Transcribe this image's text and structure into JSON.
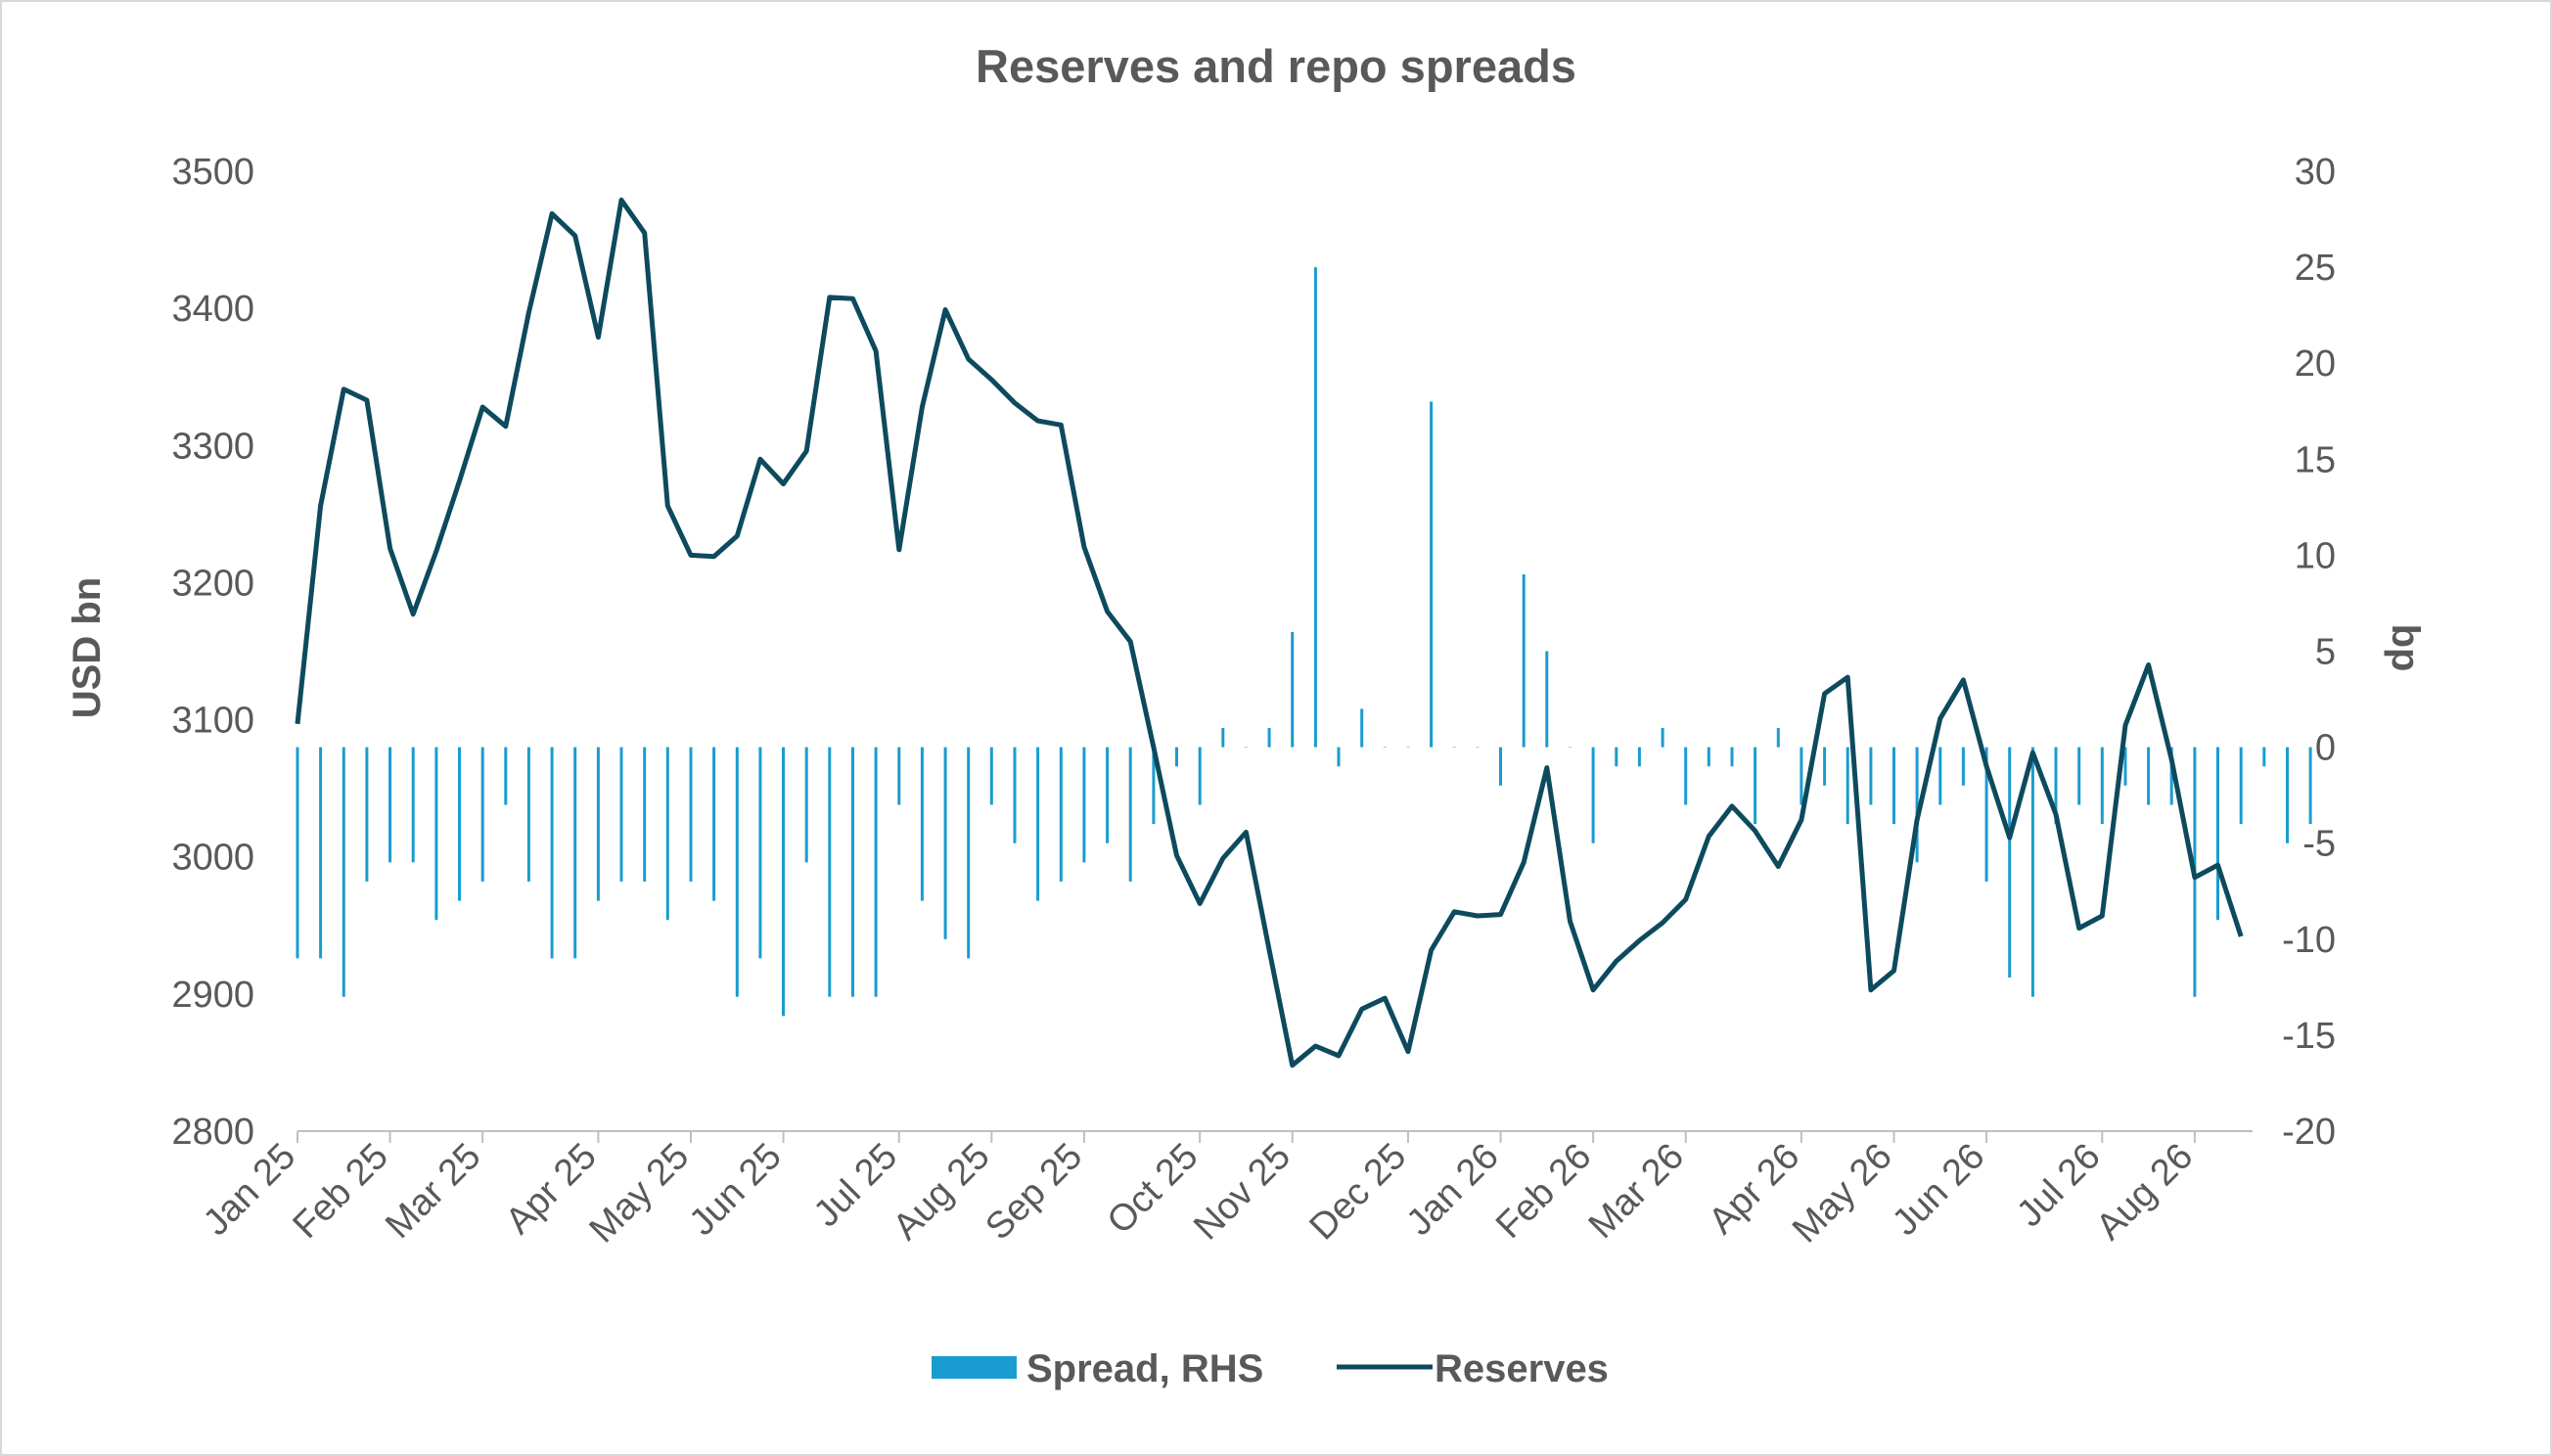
{
  "chart_data": {
    "type": "bar+line",
    "title": "Reserves and repo spreads",
    "y_left_label": "USD bn",
    "y_right_label": "bp",
    "y_left_ticks": [
      "3500",
      "3400",
      "3300",
      "3200",
      "3100",
      "3000",
      "2900",
      "2800"
    ],
    "y_left_range": [
      2800,
      3500
    ],
    "y_right_ticks": [
      "30",
      "25",
      "20",
      "15",
      "10",
      "5",
      "0",
      "-5",
      "-10",
      "-15",
      "-20"
    ],
    "y_right_range": [
      -20,
      30
    ],
    "x_tick_labels": [
      "Jan 25",
      "Feb 25",
      "Mar 25",
      "Apr 25",
      "May 25",
      "Jun 25",
      "Jul 25",
      "Aug 25",
      "Sep 25",
      "Oct 25",
      "Nov 25",
      "Dec 25",
      "Jan 26",
      "Feb 26",
      "Mar 26",
      "Apr 26",
      "May 26",
      "Jun 26",
      "Jul 26",
      "Aug 26"
    ],
    "legend_position": "bottom",
    "series": [
      {
        "name": "Spread, RHS",
        "axis": "right",
        "type": "bar",
        "color": "#1a9cd0",
        "values": [
          -11,
          -11,
          -13,
          -7,
          -6,
          -6,
          -9,
          -8,
          -7,
          -3,
          -7,
          -11,
          -11,
          -8,
          -7,
          -7,
          -9,
          -7,
          -8,
          -13,
          -11,
          -14,
          -6,
          -13,
          -13,
          -13,
          -3,
          -8,
          -10,
          -11,
          -3,
          -5,
          -8,
          -7,
          -6,
          -5,
          -7,
          -4,
          -1,
          -3,
          1,
          0,
          1,
          6,
          25,
          -1,
          2,
          0,
          0,
          18,
          0,
          0,
          -2,
          9,
          5,
          0,
          -5,
          -1,
          -1,
          1,
          -3,
          -1,
          -1,
          -4,
          1,
          -3,
          -2,
          -4,
          -3,
          -4,
          -6,
          -3,
          -2,
          -7,
          -12,
          -13,
          -4,
          -3,
          -4,
          -2,
          -3,
          -3,
          -13,
          -9,
          -4,
          -1,
          -5,
          -4
        ]
      },
      {
        "name": "Reserves",
        "axis": "left",
        "type": "line",
        "color": "#0d4a5e",
        "values": [
          3097,
          3256,
          3341,
          3333,
          3225,
          3177,
          3223,
          3274,
          3328,
          3314,
          3397,
          3469,
          3453,
          3379,
          3479,
          3455,
          3256,
          3220,
          3219,
          3234,
          3290,
          3272,
          3296,
          3408,
          3407,
          3369,
          3224,
          3328,
          3399,
          3363,
          3348,
          3331,
          3318,
          3315,
          3226,
          3179,
          3157,
          3080,
          3001,
          2966,
          2999,
          3018,
          2932,
          2848,
          2862,
          2855,
          2889,
          2897,
          2858,
          2932,
          2960,
          2957,
          2958,
          2996,
          3065,
          2953,
          2903,
          2924,
          2939,
          2952,
          2969,
          3015,
          3037,
          3019,
          2993,
          3027,
          3119,
          3131,
          2903,
          2917,
          3027,
          3101,
          3129,
          3066,
          3014,
          3076,
          3031,
          2948,
          2957,
          3096,
          3140,
          3071,
          2985,
          2994,
          2942
        ]
      }
    ]
  }
}
